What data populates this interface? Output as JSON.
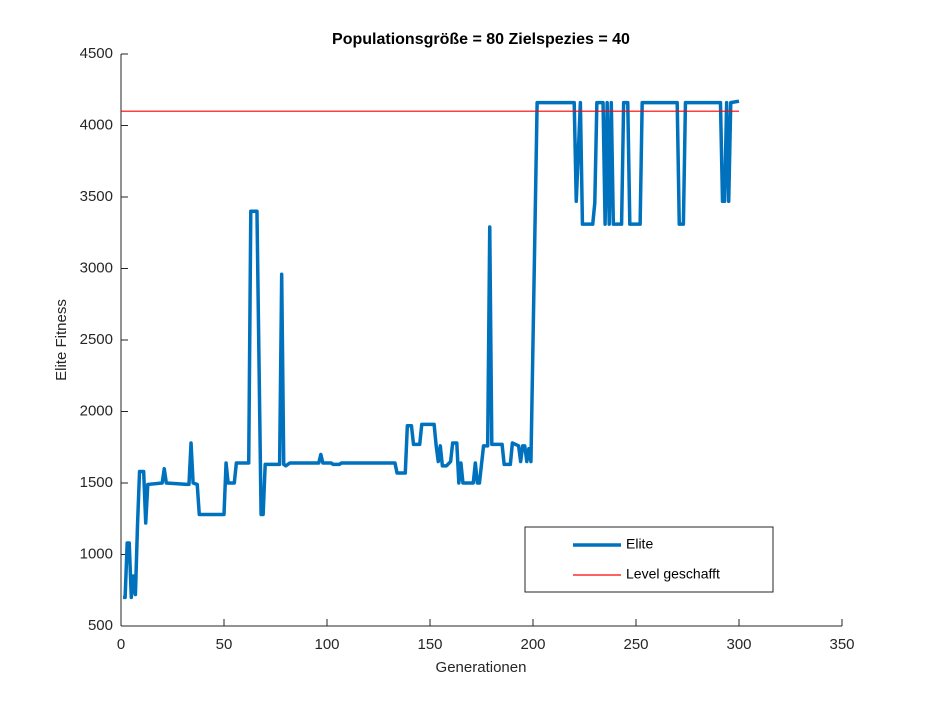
{
  "chart_data": {
    "type": "line",
    "title": "Populationsgröße = 80 Zielspezies = 40",
    "x_label": "Generationen",
    "y_label": "Elite Fitness",
    "xlim": [
      0,
      350
    ],
    "xticks": [
      0,
      50,
      100,
      150,
      200,
      250,
      300,
      350
    ],
    "ylim": [
      500,
      4500
    ],
    "yticks": [
      500,
      1000,
      1500,
      2000,
      2500,
      3000,
      3500,
      4000,
      4500
    ],
    "legend": "lower right",
    "series": [
      {
        "name": "Elite",
        "color": "#0072bd",
        "x": [
          1,
          2,
          3,
          4,
          5,
          6,
          7,
          8,
          9,
          11,
          12,
          13,
          20,
          21,
          22,
          32,
          33,
          34,
          35,
          37,
          38,
          50,
          51,
          52,
          55,
          56,
          62,
          63,
          66,
          68,
          69,
          70,
          77,
          78,
          79,
          80,
          82,
          96,
          97,
          98,
          102,
          103,
          106,
          107,
          133,
          134,
          138,
          139,
          141,
          142,
          145,
          146,
          152,
          153,
          154,
          155,
          156,
          158,
          160,
          161,
          163,
          164,
          165,
          166,
          171,
          172,
          173,
          174,
          176,
          178,
          179,
          180,
          185,
          186,
          189,
          190,
          193,
          194,
          195,
          196,
          197,
          198,
          199,
          202,
          220,
          221,
          223,
          224,
          229,
          230,
          231,
          234,
          235,
          236,
          237,
          238,
          239,
          243,
          244,
          246,
          247,
          252,
          253,
          270,
          271,
          273,
          274,
          291,
          292,
          293,
          294,
          295,
          296,
          300
        ],
        "values": [
          700,
          700,
          1080,
          1080,
          700,
          850,
          720,
          1200,
          1580,
          1580,
          1220,
          1490,
          1500,
          1600,
          1500,
          1490,
          1490,
          1780,
          1500,
          1490,
          1280,
          1280,
          1640,
          1500,
          1500,
          1640,
          1640,
          3400,
          3400,
          1280,
          1280,
          1630,
          1630,
          2960,
          1630,
          1620,
          1640,
          1640,
          1700,
          1640,
          1640,
          1630,
          1630,
          1640,
          1640,
          1570,
          1570,
          1900,
          1900,
          1770,
          1770,
          1910,
          1910,
          1760,
          1650,
          1760,
          1620,
          1620,
          1650,
          1780,
          1780,
          1500,
          1640,
          1500,
          1500,
          1640,
          1500,
          1500,
          1760,
          1760,
          3290,
          1770,
          1770,
          1630,
          1630,
          1780,
          1760,
          1650,
          1760,
          1760,
          1650,
          1740,
          1650,
          4160,
          4160,
          3470,
          4160,
          3310,
          3310,
          3460,
          4160,
          4160,
          3310,
          4160,
          3310,
          4160,
          3310,
          3310,
          4160,
          4160,
          3310,
          3310,
          4160,
          4160,
          3310,
          3310,
          4160,
          4160,
          3470,
          3470,
          4160,
          3470,
          4160,
          4170
        ]
      },
      {
        "name": "Level geschafft",
        "color": "#ff0000",
        "x": [
          0,
          300
        ],
        "values": [
          4100,
          4100
        ]
      }
    ]
  }
}
